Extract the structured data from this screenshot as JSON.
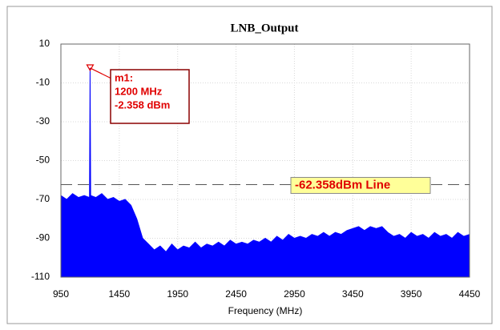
{
  "chart_data": {
    "type": "area",
    "title": "LNB_Output",
    "x_label": "Frequency (MHz)",
    "x": [
      950,
      1000,
      1050,
      1100,
      1150,
      1195,
      1200,
      1205,
      1250,
      1300,
      1350,
      1400,
      1450,
      1500,
      1550,
      1600,
      1650,
      1700,
      1750,
      1800,
      1850,
      1900,
      1950,
      2000,
      2050,
      2100,
      2150,
      2200,
      2250,
      2300,
      2350,
      2400,
      2450,
      2500,
      2550,
      2600,
      2650,
      2700,
      2750,
      2800,
      2850,
      2900,
      2950,
      3000,
      3050,
      3100,
      3150,
      3200,
      3250,
      3300,
      3350,
      3400,
      3450,
      3500,
      3550,
      3600,
      3650,
      3700,
      3750,
      3800,
      3850,
      3900,
      3950,
      4000,
      4050,
      4100,
      4150,
      4200,
      4250,
      4300,
      4350,
      4400,
      4450
    ],
    "series": [
      {
        "color": "#0000ff",
        "values": [
          -68,
          -70,
          -67,
          -69,
          -68,
          -69,
          -2.358,
          -68,
          -69,
          -67,
          -70,
          -69,
          -71,
          -70,
          -73,
          -80,
          -90,
          -93,
          -96,
          -94,
          -97,
          -93,
          -96,
          -94,
          -95,
          -92,
          -95,
          -93,
          -94,
          -92,
          -94,
          -91,
          -93,
          -92,
          -93,
          -91,
          -92,
          -90,
          -92,
          -89,
          -91,
          -88,
          -90,
          -89,
          -90,
          -88,
          -89,
          -87,
          -89,
          -87,
          -88,
          -86,
          -85,
          -84,
          -86,
          -84,
          -85,
          -84,
          -87,
          -89,
          -88,
          -90,
          -87,
          -89,
          -88,
          -90,
          -87,
          -89,
          -88,
          -90,
          -87,
          -89,
          -88
        ]
      }
    ],
    "xlim": [
      950,
      4450
    ],
    "xticks": [
      950,
      1450,
      1950,
      2450,
      2950,
      3450,
      3950,
      4450
    ],
    "ylim": [
      -110,
      10
    ],
    "yticks": [
      -110,
      -90,
      -70,
      -50,
      -30,
      -10,
      10
    ],
    "grid": true,
    "marker": {
      "x": 1200,
      "y": -2.358,
      "label_lines": [
        "m1:",
        "1200 MHz",
        "-2.358 dBm"
      ]
    },
    "reference_line": {
      "value": -62.358,
      "label": "-62.358dBm Line"
    }
  }
}
